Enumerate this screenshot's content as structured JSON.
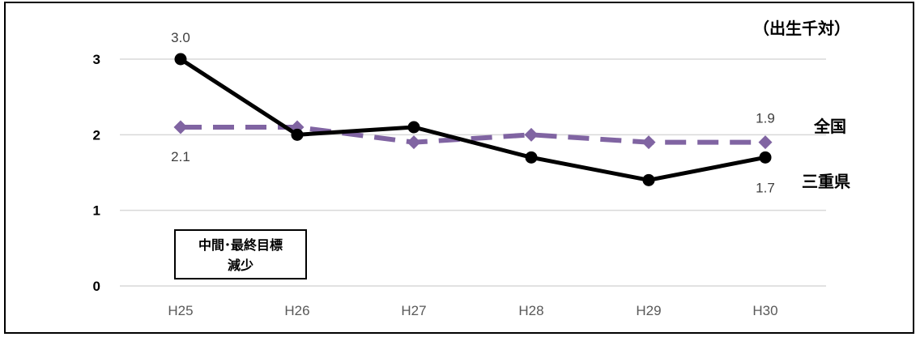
{
  "chart_data": {
    "type": "line",
    "unit_label": "（出生千対）",
    "categories": [
      "H25",
      "H26",
      "H27",
      "H28",
      "H29",
      "H30"
    ],
    "ylim": [
      0,
      3
    ],
    "yticks": [
      "0",
      "1",
      "2",
      "3"
    ],
    "grid": true,
    "series": [
      {
        "name": "三重県",
        "values": [
          3.0,
          2.0,
          2.1,
          1.7,
          1.4,
          1.7
        ],
        "color": "#000000",
        "style": "solid",
        "marker": "circle",
        "labels": {
          "0": "3.0",
          "5": "1.7"
        }
      },
      {
        "name": "全国",
        "values": [
          2.1,
          2.1,
          1.9,
          2.0,
          1.9,
          1.9
        ],
        "color": "#8064A2",
        "style": "dashed",
        "marker": "diamond",
        "labels": {
          "0": "2.1",
          "5": "1.9"
        }
      }
    ],
    "annotation": [
      "中間･最終目標",
      "減少"
    ]
  }
}
